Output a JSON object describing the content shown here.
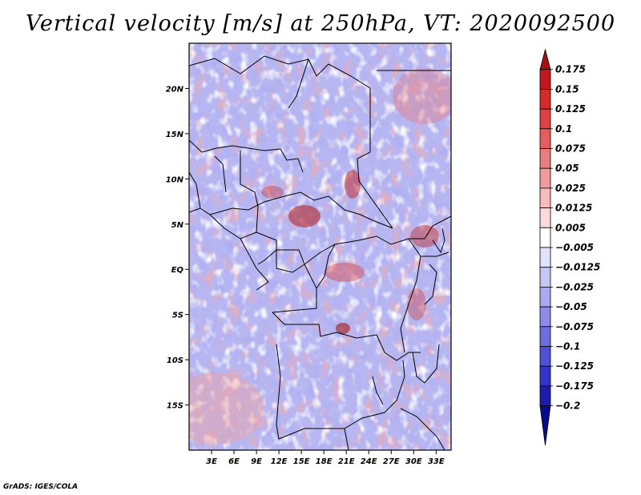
{
  "title": "Vertical velocity [m/s] at 250hPa, VT: 2020092500",
  "footer": "GrADS: IGES/COLA",
  "map": {
    "lat_labels": [
      "20N",
      "15N",
      "10N",
      "5N",
      "EQ",
      "5S",
      "10S",
      "15S"
    ],
    "lon_labels": [
      "3E",
      "6E",
      "9E",
      "12E",
      "15E",
      "18E",
      "21E",
      "24E",
      "27E",
      "30E",
      "33E"
    ],
    "lat_values": [
      20,
      15,
      10,
      5,
      0,
      -5,
      -10,
      -15
    ],
    "lon_values": [
      3,
      6,
      9,
      12,
      15,
      18,
      21,
      24,
      27,
      30,
      33
    ],
    "lat_range": [
      -20,
      25
    ],
    "lon_range": [
      0,
      35
    ]
  },
  "colorbar": {
    "labels": [
      "0.175",
      "0.15",
      "0.125",
      "0.1",
      "0.075",
      "0.05",
      "0.025",
      "0.0125",
      "0.005",
      "−0.005",
      "−0.0125",
      "−0.025",
      "−0.05",
      "−0.075",
      "−0.1",
      "−0.125",
      "−0.175",
      "−0.2"
    ],
    "colors": [
      "#a50f15",
      "#c0181e",
      "#d42a2a",
      "#e04040",
      "#e55e5e",
      "#ea7d7d",
      "#f09c9c",
      "#f5bcbc",
      "#fadada",
      "#ffffff",
      "#e2e2fb",
      "#c6c6f5",
      "#aaaaf0",
      "#8c8ce8",
      "#6e6ee0",
      "#5050d6",
      "#3434c8",
      "#1c1cb0",
      "#0a0a8c"
    ]
  },
  "chart_data": {
    "type": "heatmap",
    "title": "Vertical velocity [m/s] at 250hPa, VT: 2020092500",
    "variable": "Vertical velocity",
    "units": "m/s",
    "level": "250hPa",
    "valid_time": "2020092500",
    "x_ticks": [
      "3E",
      "6E",
      "9E",
      "12E",
      "15E",
      "18E",
      "21E",
      "24E",
      "27E",
      "30E",
      "33E"
    ],
    "y_ticks": [
      "20N",
      "15N",
      "10N",
      "5N",
      "EQ",
      "5S",
      "10S",
      "15S"
    ],
    "contour_levels": [
      -0.2,
      -0.175,
      -0.125,
      -0.1,
      -0.075,
      -0.05,
      -0.025,
      -0.0125,
      -0.005,
      0.005,
      0.0125,
      0.025,
      0.05,
      0.075,
      0.1,
      0.125,
      0.15,
      0.175
    ]
  }
}
